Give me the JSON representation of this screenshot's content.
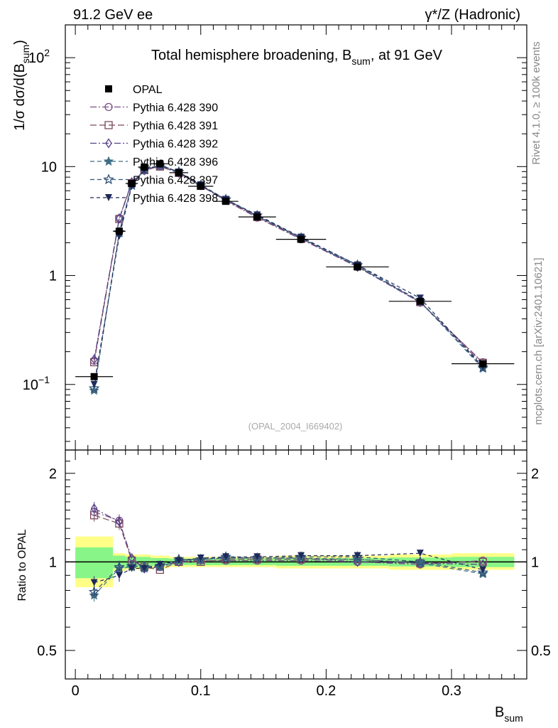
{
  "header": {
    "left_label": "91.2 GeV ee",
    "right_label": "γ*/Z (Hadronic)"
  },
  "side_labels": {
    "rivet": "Rivet 4.1.0, ≥ 100k events",
    "mcplots": "mcplots.cern.ch [arXiv:2401.10621]"
  },
  "chart_data": [
    {
      "type": "line",
      "title": "Total hemisphere broadening, B_sum, at 91 GeV",
      "title_main": "Total hemisphere broadening, B",
      "title_sub": "sum",
      "title_tail": ", at 91 GeV",
      "watermark": "(OPAL_2004_I669402)",
      "ylabel": "1/σ  dσ/d(B_sum)",
      "ylabel_prefix": "1/σ   dσ/d(B",
      "ylabel_sub": "sum",
      "ylabel_suffix": ")",
      "yscale": "log",
      "ylim": [
        0.025,
        200
      ],
      "xlim": [
        -0.008,
        0.36
      ],
      "ytick_labels": [
        {
          "value": 100,
          "base": "10",
          "exp": "2"
        },
        {
          "value": 10,
          "base": "10",
          "exp": ""
        },
        {
          "value": 1,
          "base": "1",
          "exp": ""
        },
        {
          "value": 0.1,
          "base": "10",
          "exp": "−1"
        }
      ],
      "x": [
        0.015,
        0.035,
        0.045,
        0.055,
        0.0675,
        0.0825,
        0.1,
        0.12,
        0.145,
        0.18,
        0.225,
        0.275,
        0.325
      ],
      "x_edges": [
        0.0,
        0.03,
        0.04,
        0.05,
        0.06,
        0.075,
        0.09,
        0.11,
        0.13,
        0.16,
        0.2,
        0.25,
        0.3,
        0.35
      ],
      "data": {
        "name": "OPAL",
        "values": [
          0.118,
          2.55,
          7.0,
          9.9,
          10.6,
          8.8,
          6.6,
          4.8,
          3.45,
          2.15,
          1.2,
          0.58,
          0.155
        ]
      },
      "series": [
        {
          "name": "Pythia 6.428 390",
          "marker": "circle-open",
          "color": "#7a4f86",
          "dash": "9,3,2,3",
          "values": [
            0.165,
            3.35,
            7.1,
            9.2,
            10.1,
            8.7,
            6.7,
            4.85,
            3.4,
            2.15,
            1.2,
            0.565,
            0.16
          ]
        },
        {
          "name": "Pythia 6.428 391",
          "marker": "square-open",
          "color": "#7a4a5e",
          "dash": "9,4",
          "values": [
            0.16,
            3.3,
            7.05,
            9.3,
            10.0,
            8.75,
            6.65,
            4.9,
            3.45,
            2.18,
            1.22,
            0.57,
            0.158
          ]
        },
        {
          "name": "Pythia 6.428 392",
          "marker": "diamond-open",
          "color": "#57408a",
          "dash": "9,3,2,3",
          "values": [
            0.17,
            3.35,
            7.2,
            9.25,
            10.3,
            8.8,
            6.75,
            4.95,
            3.5,
            2.2,
            1.2,
            0.57,
            0.152
          ]
        },
        {
          "name": "Pythia 6.428 396",
          "marker": "star-filled",
          "color": "#3e6e85",
          "dash": "6,4",
          "values": [
            0.088,
            2.45,
            6.7,
            9.35,
            10.2,
            8.9,
            6.7,
            4.95,
            3.55,
            2.2,
            1.22,
            0.575,
            0.14
          ]
        },
        {
          "name": "Pythia 6.428 397",
          "marker": "star-open",
          "color": "#335478",
          "dash": "6,4",
          "values": [
            0.092,
            2.5,
            6.8,
            9.4,
            10.3,
            8.95,
            6.75,
            5.0,
            3.55,
            2.22,
            1.25,
            0.58,
            0.143
          ]
        },
        {
          "name": "Pythia 6.428 398",
          "marker": "triangle-down-filled",
          "color": "#1e2a5a",
          "dash": "5,4",
          "values": [
            0.1,
            2.3,
            6.6,
            9.3,
            10.4,
            8.9,
            6.8,
            5.0,
            3.6,
            2.25,
            1.25,
            0.62,
            0.145
          ]
        }
      ],
      "legend_position": "top-left"
    },
    {
      "type": "line",
      "ylabel": "Ratio to OPAL",
      "xlabel": "B_sum",
      "xlabel_main": "B",
      "xlabel_sub": "sum",
      "ylim": [
        0.4,
        2.4
      ],
      "yscale": "log",
      "yticks": [
        0.5,
        1,
        2
      ],
      "ytick_labels": [
        "0.5",
        "1",
        "2"
      ],
      "xticks": [
        0,
        0.1,
        0.2,
        0.3
      ],
      "xtick_labels": [
        "0",
        "0.1",
        "0.2",
        "0.3"
      ],
      "band_inner": [
        [
          0.88,
          1.12
        ],
        [
          0.95,
          1.05
        ],
        [
          0.96,
          1.04
        ],
        [
          0.96,
          1.04
        ],
        [
          0.97,
          1.03
        ],
        [
          0.975,
          1.025
        ],
        [
          0.975,
          1.025
        ],
        [
          0.975,
          1.025
        ],
        [
          0.975,
          1.025
        ],
        [
          0.97,
          1.03
        ],
        [
          0.97,
          1.03
        ],
        [
          0.965,
          1.035
        ],
        [
          0.96,
          1.04
        ]
      ],
      "band_outer": [
        [
          0.82,
          1.22
        ],
        [
          0.93,
          1.07
        ],
        [
          0.94,
          1.06
        ],
        [
          0.94,
          1.06
        ],
        [
          0.95,
          1.05
        ],
        [
          0.96,
          1.04
        ],
        [
          0.96,
          1.04
        ],
        [
          0.96,
          1.04
        ],
        [
          0.96,
          1.04
        ],
        [
          0.95,
          1.05
        ],
        [
          0.95,
          1.05
        ],
        [
          0.94,
          1.06
        ],
        [
          0.94,
          1.07
        ]
      ],
      "series_ratios": [
        {
          "name": "Pythia 6.428 390",
          "values": [
            1.48,
            1.38,
            1.02,
            0.95,
            0.96,
            1.0,
            1.01,
            1.01,
            1.01,
            1.01,
            1.0,
            0.98,
            1.01
          ]
        },
        {
          "name": "Pythia 6.428 391",
          "values": [
            1.44,
            1.35,
            1.01,
            0.96,
            0.94,
            1.0,
            1.0,
            1.02,
            1.02,
            1.02,
            1.02,
            0.99,
            1.0
          ]
        },
        {
          "name": "Pythia 6.428 392",
          "values": [
            1.52,
            1.37,
            1.03,
            0.95,
            0.97,
            1.0,
            1.02,
            1.03,
            1.03,
            1.03,
            1.0,
            0.99,
            0.98
          ]
        },
        {
          "name": "Pythia 6.428 396",
          "values": [
            0.77,
            0.95,
            0.96,
            0.95,
            0.96,
            1.01,
            1.02,
            1.03,
            1.03,
            1.03,
            1.02,
            0.99,
            0.91
          ]
        },
        {
          "name": "Pythia 6.428 397",
          "values": [
            0.79,
            0.96,
            0.97,
            0.96,
            0.97,
            1.02,
            1.02,
            1.04,
            1.03,
            1.04,
            1.04,
            1.0,
            0.92
          ]
        },
        {
          "name": "Pythia 6.428 398",
          "values": [
            0.85,
            0.9,
            0.95,
            0.95,
            0.98,
            1.01,
            1.03,
            1.04,
            1.04,
            1.05,
            1.05,
            1.07,
            0.94
          ]
        }
      ]
    }
  ]
}
